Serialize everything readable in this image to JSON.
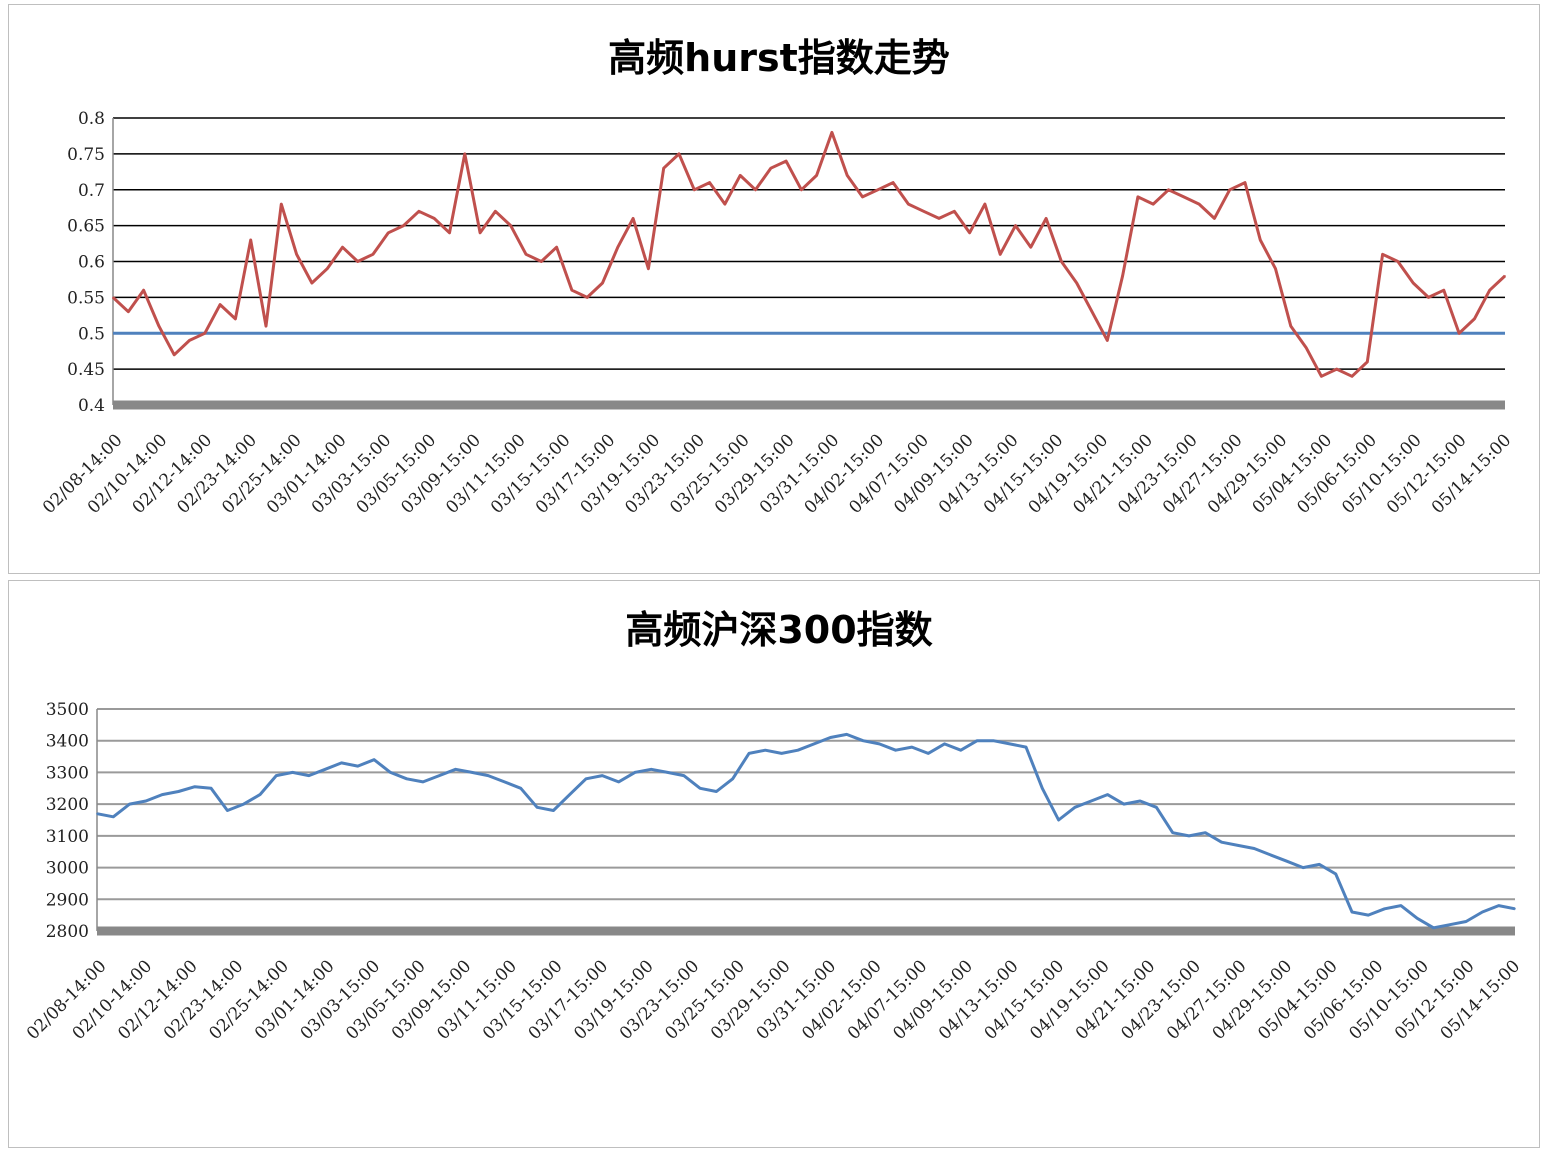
{
  "charts": [
    {
      "type": "line",
      "title": "高频hurst指数走势",
      "ylim": [
        0.4,
        0.8
      ],
      "yticks": [
        "0.8",
        "0.75",
        "0.7",
        "0.65",
        "0.6",
        "0.55",
        "0.5",
        "0.45",
        "0.4"
      ],
      "grid": true,
      "line_color": "#c0504d",
      "reference_line": {
        "value": 0.5,
        "color": "#4f81bd"
      },
      "x_tick_labels": [
        "02/08-14:00",
        "02/10-14:00",
        "02/12-14:00",
        "02/23-14:00",
        "02/25-14:00",
        "03/01-14:00",
        "03/03-15:00",
        "03/05-15:00",
        "03/09-15:00",
        "03/11-15:00",
        "03/15-15:00",
        "03/17-15:00",
        "03/19-15:00",
        "03/23-15:00",
        "03/25-15:00",
        "03/29-15:00",
        "03/31-15:00",
        "04/02-15:00",
        "04/07-15:00",
        "04/09-15:00",
        "04/13-15:00",
        "04/15-15:00",
        "04/19-15:00",
        "04/21-15:00",
        "04/23-15:00",
        "04/27-15:00",
        "04/29-15:00",
        "05/04-15:00",
        "05/06-15:00",
        "05/10-15:00",
        "05/12-15:00",
        "05/14-15:00"
      ],
      "values": [
        0.55,
        0.53,
        0.56,
        0.51,
        0.47,
        0.49,
        0.5,
        0.54,
        0.52,
        0.63,
        0.51,
        0.68,
        0.61,
        0.57,
        0.59,
        0.62,
        0.6,
        0.61,
        0.64,
        0.65,
        0.67,
        0.66,
        0.64,
        0.75,
        0.64,
        0.67,
        0.65,
        0.61,
        0.6,
        0.62,
        0.56,
        0.55,
        0.57,
        0.62,
        0.66,
        0.59,
        0.73,
        0.75,
        0.7,
        0.71,
        0.68,
        0.72,
        0.7,
        0.73,
        0.74,
        0.7,
        0.72,
        0.78,
        0.72,
        0.69,
        0.7,
        0.71,
        0.68,
        0.67,
        0.66,
        0.67,
        0.64,
        0.68,
        0.61,
        0.65,
        0.62,
        0.66,
        0.6,
        0.57,
        0.53,
        0.49,
        0.58,
        0.69,
        0.68,
        0.7,
        0.69,
        0.68,
        0.66,
        0.7,
        0.71,
        0.63,
        0.59,
        0.51,
        0.48,
        0.44,
        0.45,
        0.44,
        0.46,
        0.61,
        0.6,
        0.57,
        0.55,
        0.56,
        0.5,
        0.52,
        0.56,
        0.58
      ]
    },
    {
      "type": "line",
      "title": "高频沪深300指数",
      "ylim": [
        2800,
        3500
      ],
      "yticks": [
        "3500",
        "3400",
        "3300",
        "3200",
        "3100",
        "3000",
        "2900",
        "2800"
      ],
      "grid": true,
      "line_color": "#4f81bd",
      "x_tick_labels": [
        "02/08-14:00",
        "02/10-14:00",
        "02/12-14:00",
        "02/23-14:00",
        "02/25-14:00",
        "03/01-14:00",
        "03/03-15:00",
        "03/05-15:00",
        "03/09-15:00",
        "03/11-15:00",
        "03/15-15:00",
        "03/17-15:00",
        "03/19-15:00",
        "03/23-15:00",
        "03/25-15:00",
        "03/29-15:00",
        "03/31-15:00",
        "04/02-15:00",
        "04/07-15:00",
        "04/09-15:00",
        "04/13-15:00",
        "04/15-15:00",
        "04/19-15:00",
        "04/21-15:00",
        "04/23-15:00",
        "04/27-15:00",
        "04/29-15:00",
        "05/04-15:00",
        "05/06-15:00",
        "05/10-15:00",
        "05/12-15:00",
        "05/14-15:00"
      ],
      "values": [
        3170,
        3160,
        3200,
        3210,
        3230,
        3240,
        3255,
        3250,
        3180,
        3200,
        3230,
        3290,
        3300,
        3290,
        3310,
        3330,
        3320,
        3340,
        3300,
        3280,
        3270,
        3290,
        3310,
        3300,
        3290,
        3270,
        3250,
        3190,
        3180,
        3230,
        3280,
        3290,
        3270,
        3300,
        3310,
        3300,
        3290,
        3250,
        3240,
        3280,
        3360,
        3370,
        3360,
        3370,
        3390,
        3410,
        3420,
        3400,
        3390,
        3370,
        3380,
        3360,
        3390,
        3370,
        3400,
        3400,
        3390,
        3380,
        3250,
        3150,
        3190,
        3210,
        3230,
        3200,
        3210,
        3190,
        3110,
        3100,
        3110,
        3080,
        3070,
        3060,
        3040,
        3020,
        3000,
        3010,
        2980,
        2860,
        2850,
        2870,
        2880,
        2840,
        2810,
        2820,
        2830,
        2860,
        2880,
        2870
      ]
    }
  ]
}
